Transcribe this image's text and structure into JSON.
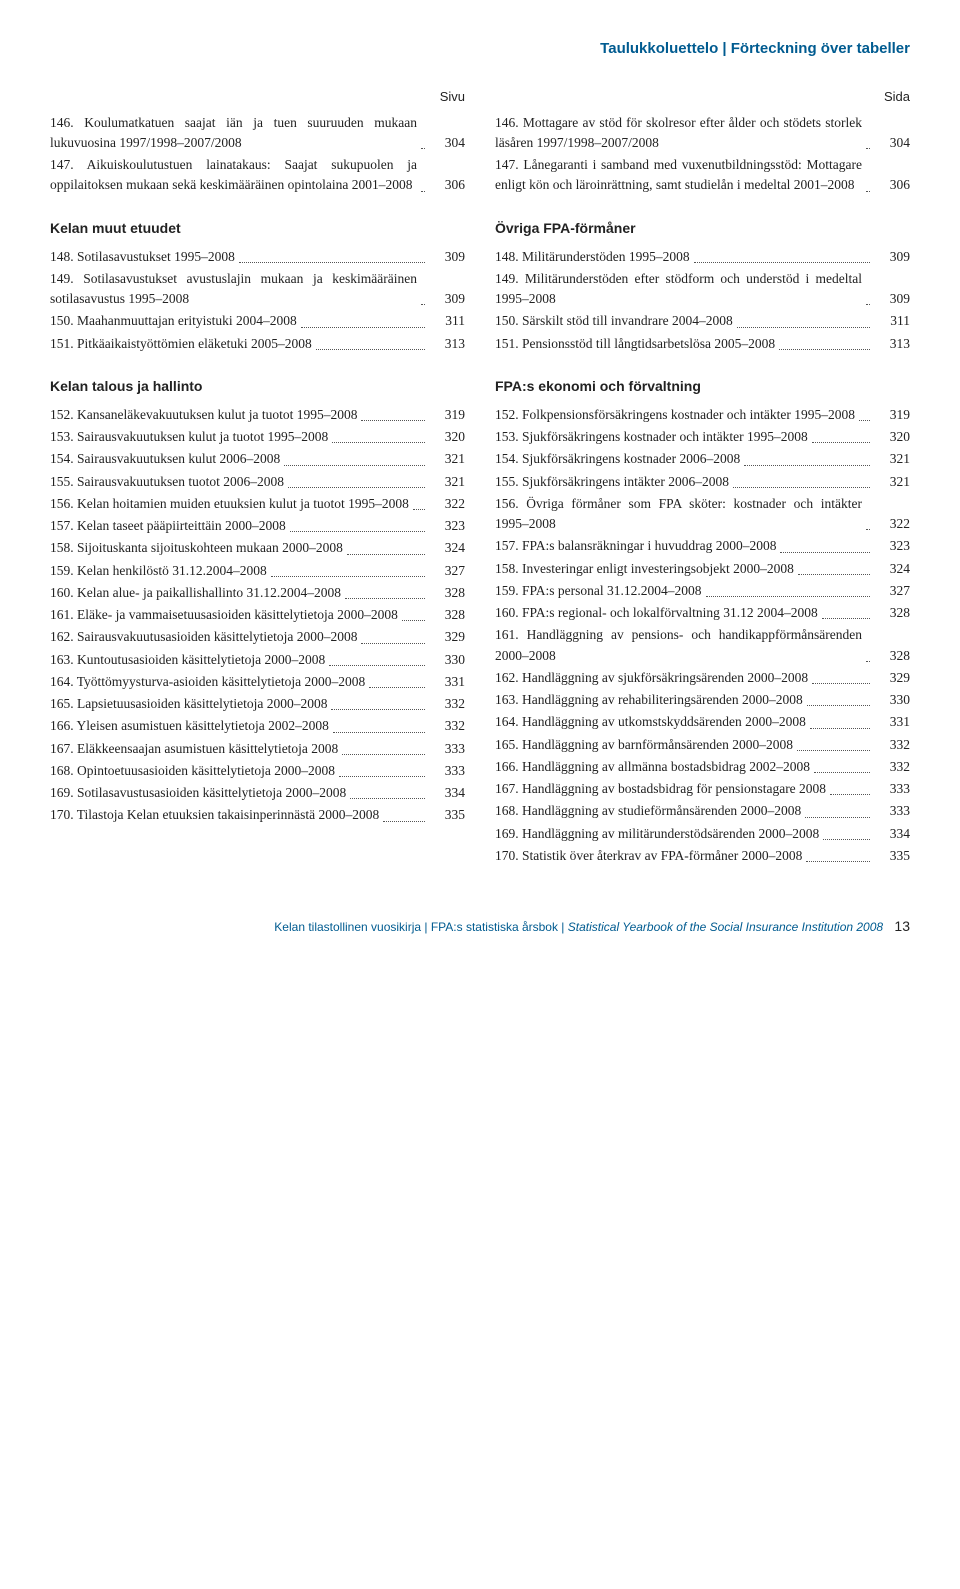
{
  "header": {
    "title": "Taulukkoluettelo | Förteckning över tabeller"
  },
  "left": {
    "pageLabel": "Sivu",
    "blocks": [
      {
        "heading": null,
        "entries": [
          {
            "text": "146. Koulumatkatuen saajat iän ja tuen suuruuden mukaan lukuvuosina 1997/1998–2007/2008",
            "page": "304"
          },
          {
            "text": "147. Aikuiskoulutustuen lainatakaus: Saajat sukupuolen ja oppilaitoksen mukaan sekä keskimääräinen opintolaina 2001–2008",
            "page": "306"
          }
        ]
      },
      {
        "heading": "Kelan muut etuudet",
        "entries": [
          {
            "text": "148. Sotilasavustukset 1995–2008",
            "page": "309"
          },
          {
            "text": "149. Sotilasavustukset avustuslajin mukaan ja keskimääräinen sotilasavustus 1995–2008",
            "page": "309"
          },
          {
            "text": "150. Maahanmuuttajan erityistuki 2004–2008",
            "page": "311"
          },
          {
            "text": "151. Pitkäaikaistyöttömien eläketuki 2005–2008",
            "page": "313"
          }
        ]
      },
      {
        "heading": "Kelan talous ja hallinto",
        "entries": [
          {
            "text": "152. Kansaneläkevakuutuksen kulut ja tuotot 1995–2008",
            "page": "319"
          },
          {
            "text": "153. Sairausvakuutuksen kulut ja tuotot 1995–2008",
            "page": "320"
          },
          {
            "text": "154. Sairausvakuutuksen kulut 2006–2008",
            "page": "321"
          },
          {
            "text": "155. Sairausvakuutuksen tuotot 2006–2008",
            "page": "321"
          },
          {
            "text": "156. Kelan hoitamien muiden etuuksien kulut ja tuotot 1995–2008",
            "page": "322"
          },
          {
            "text": "157. Kelan taseet pääpiirteittäin 2000–2008",
            "page": "323"
          },
          {
            "text": "158. Sijoituskanta sijoituskohteen mukaan 2000–2008",
            "page": "324"
          },
          {
            "text": "159. Kelan henkilöstö 31.12.2004–2008",
            "page": "327"
          },
          {
            "text": "160. Kelan alue- ja paikallishallinto 31.12.2004–2008",
            "page": "328"
          },
          {
            "text": "161. Eläke- ja vammaisetuusasioiden käsittelytietoja 2000–2008",
            "page": "328"
          },
          {
            "text": "162. Sairausvakuutusasioiden käsittelytietoja 2000–2008",
            "page": "329"
          },
          {
            "text": "163. Kuntoutusasioiden käsittelytietoja 2000–2008",
            "page": "330"
          },
          {
            "text": "164. Työttömyysturva-asioiden käsittelytietoja 2000–2008",
            "page": "331"
          },
          {
            "text": "165. Lapsietuusasioiden käsittelytietoja 2000–2008",
            "page": "332"
          },
          {
            "text": "166. Yleisen asumistuen käsittelytietoja 2002–2008",
            "page": "332"
          },
          {
            "text": "167. Eläkkeensaajan asumistuen käsittelytietoja 2008",
            "page": "333"
          },
          {
            "text": "168. Opintoetuusasioiden käsittelytietoja 2000–2008",
            "page": "333"
          },
          {
            "text": "169. Sotilasavustusasioiden käsittelytietoja 2000–2008",
            "page": "334"
          },
          {
            "text": "170. Tilastoja Kelan etuuksien takaisinperinnästä 2000–2008",
            "page": "335"
          }
        ]
      }
    ]
  },
  "right": {
    "pageLabel": "Sida",
    "blocks": [
      {
        "heading": null,
        "entries": [
          {
            "text": "146. Mottagare av stöd för skolresor efter ålder och stödets storlek läsåren 1997/1998–2007/2008",
            "page": "304"
          },
          {
            "text": "147. Lånegaranti i samband med vuxenutbildningsstöd: Mottagare enligt kön och läroinrättning, samt studielån i medeltal 2001–2008",
            "page": "306"
          }
        ]
      },
      {
        "heading": "Övriga FPA-förmåner",
        "entries": [
          {
            "text": "148. Militärunderstöden 1995–2008",
            "page": "309"
          },
          {
            "text": "149. Militärunderstöden efter stödform och understöd i medeltal 1995–2008",
            "page": "309"
          },
          {
            "text": "150. Särskilt stöd till invandrare 2004–2008",
            "page": "311"
          },
          {
            "text": "151. Pensionsstöd till långtidsarbetslösa 2005–2008",
            "page": "313"
          }
        ]
      },
      {
        "heading": "FPA:s ekonomi och förvaltning",
        "entries": [
          {
            "text": "152. Folkpensionsförsäkringens kostnader och intäkter 1995–2008",
            "page": "319"
          },
          {
            "text": "153. Sjukförsäkringens kostnader och intäkter 1995–2008",
            "page": "320"
          },
          {
            "text": "154. Sjukförsäkringens kostnader 2006–2008",
            "page": "321"
          },
          {
            "text": "155. Sjukförsäkringens intäkter 2006–2008",
            "page": "321"
          },
          {
            "text": "156. Övriga förmåner som FPA sköter: kostnader och intäkter 1995–2008",
            "page": "322"
          },
          {
            "text": "157. FPA:s balansräkningar i huvuddrag 2000–2008",
            "page": "323"
          },
          {
            "text": "158. Investeringar enligt investeringsobjekt 2000–2008",
            "page": "324"
          },
          {
            "text": "159. FPA:s personal 31.12.2004–2008",
            "page": "327"
          },
          {
            "text": "160. FPA:s regional- och lokalförvaltning 31.12 2004–2008",
            "page": "328"
          },
          {
            "text": "161. Handläggning av pensions- och handikappförmånsärenden 2000–2008",
            "page": "328"
          },
          {
            "text": "162. Handläggning av sjukförsäkringsärenden 2000–2008",
            "page": "329"
          },
          {
            "text": "163. Handläggning av rehabiliteringsärenden 2000–2008",
            "page": "330"
          },
          {
            "text": "164. Handläggning av utkomstskyddsärenden 2000–2008",
            "page": "331"
          },
          {
            "text": "165. Handläggning av barnförmånsärenden 2000–2008",
            "page": "332"
          },
          {
            "text": "166. Handläggning av allmänna bostadsbidrag 2002–2008",
            "page": "332"
          },
          {
            "text": "167. Handläggning av bostadsbidrag för pensionstagare 2008",
            "page": "333"
          },
          {
            "text": "168. Handläggning av studieförmånsärenden 2000–2008",
            "page": "333"
          },
          {
            "text": "169. Handläggning av militärunderstödsärenden 2000–2008",
            "page": "334"
          },
          {
            "text": "170. Statistik över återkrav av FPA-förmåner 2000–2008",
            "page": "335"
          }
        ]
      }
    ]
  },
  "footer": {
    "line1": "Kelan tilastollinen vuosikirja | FPA:s statistiska årsbok | ",
    "italic": "Statistical Yearbook of the Social Insurance Institution 2008",
    "pageNumber": "13"
  }
}
